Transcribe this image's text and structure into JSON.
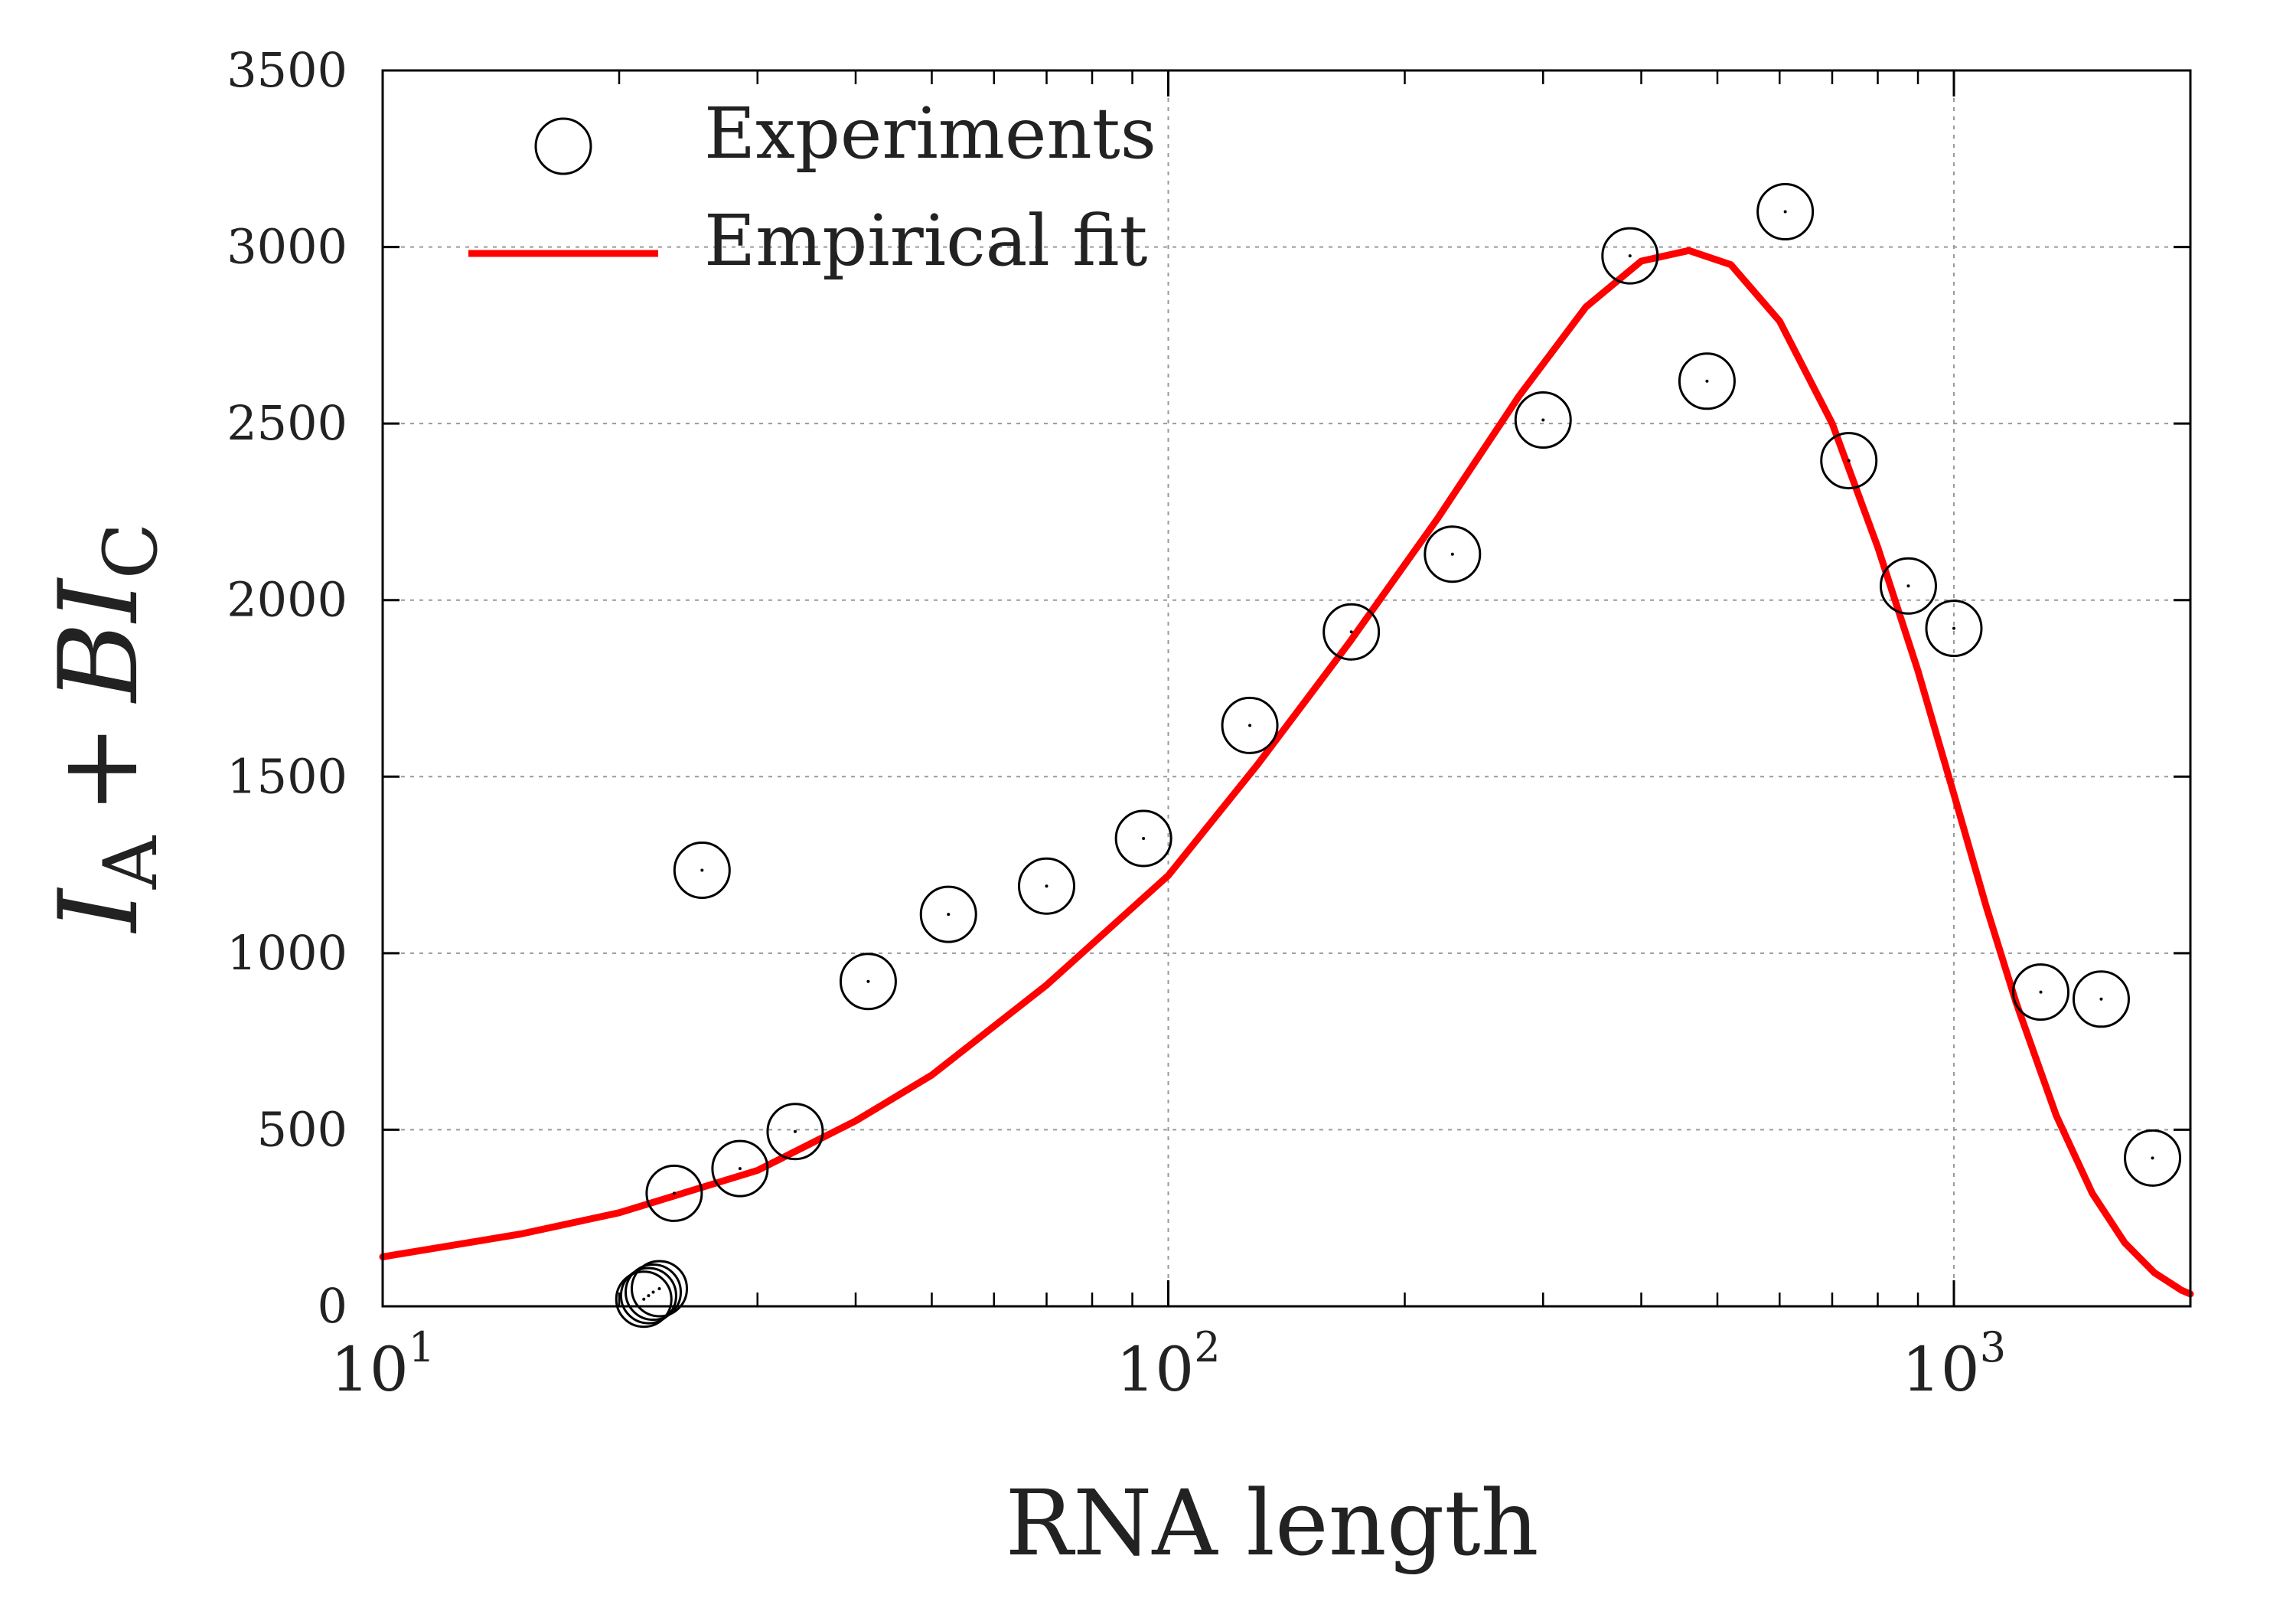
{
  "chart_data": {
    "type": "scatter",
    "xlabel": "RNA length",
    "ylabel": {
      "I": "I",
      "sub_A": "A",
      "plus": "+",
      "B": "B",
      "sub_C": "C"
    },
    "x_scale": "log",
    "xlim": [
      10,
      2000
    ],
    "ylim": [
      0,
      3500
    ],
    "grid": true,
    "legend_position": "top-left",
    "x_ticks": [
      {
        "value": 10,
        "base": "10",
        "exp": "1"
      },
      {
        "value": 100,
        "base": "10",
        "exp": "2"
      },
      {
        "value": 1000,
        "base": "10",
        "exp": "3"
      }
    ],
    "y_ticks": [
      0,
      500,
      1000,
      1500,
      2000,
      2500,
      3000,
      3500
    ],
    "series": [
      {
        "name": "Experiments",
        "kind": "scatter",
        "color": "#000000",
        "points": [
          {
            "x": 21.5,
            "y": 20
          },
          {
            "x": 21.8,
            "y": 30
          },
          {
            "x": 22.1,
            "y": 40
          },
          {
            "x": 22.5,
            "y": 50
          },
          {
            "x": 23.5,
            "y": 320
          },
          {
            "x": 25.5,
            "y": 1235
          },
          {
            "x": 28.5,
            "y": 390
          },
          {
            "x": 33.5,
            "y": 495
          },
          {
            "x": 41.5,
            "y": 920
          },
          {
            "x": 52.5,
            "y": 1110
          },
          {
            "x": 70,
            "y": 1190
          },
          {
            "x": 93,
            "y": 1325
          },
          {
            "x": 127,
            "y": 1645
          },
          {
            "x": 171,
            "y": 1910
          },
          {
            "x": 230,
            "y": 2130
          },
          {
            "x": 300,
            "y": 2510
          },
          {
            "x": 387,
            "y": 2975
          },
          {
            "x": 485,
            "y": 2620
          },
          {
            "x": 610,
            "y": 3100
          },
          {
            "x": 735,
            "y": 2395
          },
          {
            "x": 875,
            "y": 2040
          },
          {
            "x": 1000,
            "y": 1920
          },
          {
            "x": 1290,
            "y": 890
          },
          {
            "x": 1540,
            "y": 870
          },
          {
            "x": 1790,
            "y": 420
          }
        ]
      },
      {
        "name": "Empirical fit",
        "kind": "line",
        "color": "#ff0000",
        "points": [
          {
            "x": 10,
            "y": 140
          },
          {
            "x": 15,
            "y": 205
          },
          {
            "x": 20,
            "y": 265
          },
          {
            "x": 30,
            "y": 385
          },
          {
            "x": 40,
            "y": 525
          },
          {
            "x": 50,
            "y": 655
          },
          {
            "x": 70,
            "y": 910
          },
          {
            "x": 100,
            "y": 1220
          },
          {
            "x": 130,
            "y": 1535
          },
          {
            "x": 170,
            "y": 1880
          },
          {
            "x": 220,
            "y": 2230
          },
          {
            "x": 280,
            "y": 2580
          },
          {
            "x": 340,
            "y": 2830
          },
          {
            "x": 400,
            "y": 2960
          },
          {
            "x": 460,
            "y": 2990
          },
          {
            "x": 520,
            "y": 2950
          },
          {
            "x": 600,
            "y": 2790
          },
          {
            "x": 700,
            "y": 2500
          },
          {
            "x": 800,
            "y": 2150
          },
          {
            "x": 900,
            "y": 1800
          },
          {
            "x": 1000,
            "y": 1450
          },
          {
            "x": 1100,
            "y": 1130
          },
          {
            "x": 1200,
            "y": 860
          },
          {
            "x": 1350,
            "y": 540
          },
          {
            "x": 1500,
            "y": 320
          },
          {
            "x": 1650,
            "y": 180
          },
          {
            "x": 1800,
            "y": 95
          },
          {
            "x": 1950,
            "y": 45
          },
          {
            "x": 2000,
            "y": 35
          }
        ]
      }
    ]
  }
}
